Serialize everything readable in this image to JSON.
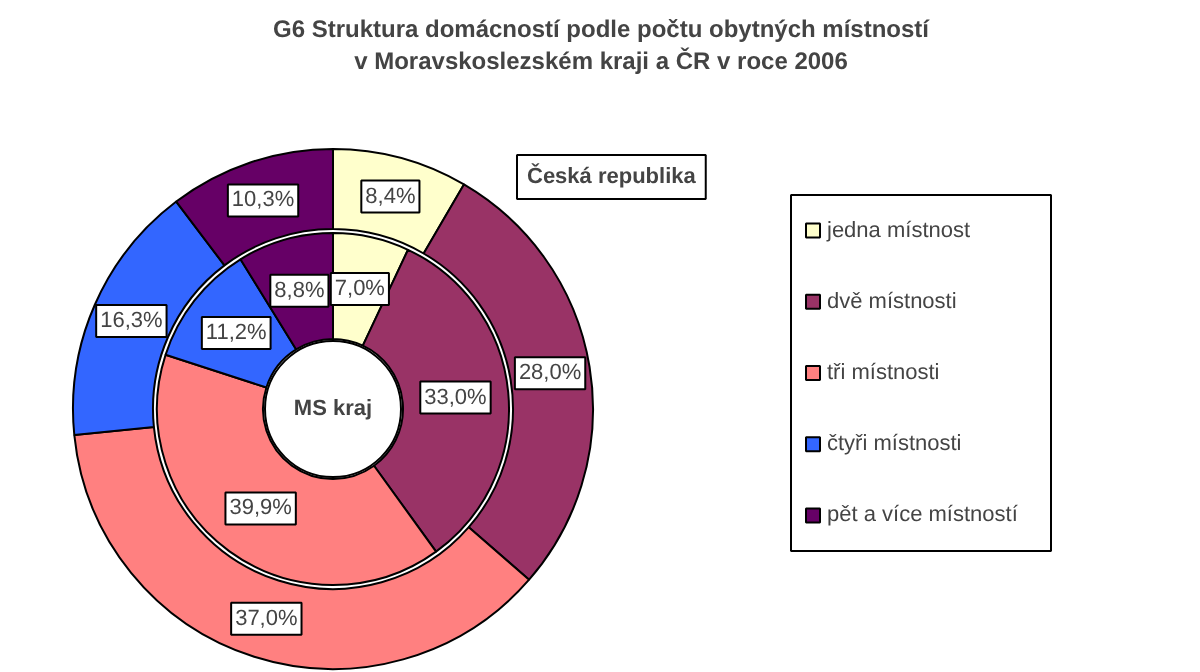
{
  "chart_data": {
    "type": "donut",
    "title": "G6 Struktura domácností podle počtu obytných místností\nv Moravskoslezském kraji a ČR v roce 2006",
    "categories": [
      "jedna místnost",
      "dvě místnosti",
      "tři místnosti",
      "čtyři místnosti",
      "pět a více místností"
    ],
    "colors": [
      "#ffffcc",
      "#993366",
      "#ff8080",
      "#3366ff",
      "#660066"
    ],
    "series": [
      {
        "name": "Česká republika",
        "values": [
          8.4,
          28.0,
          37.0,
          16.3,
          10.3
        ],
        "value_labels": [
          "8,4%",
          "28,0%",
          "37,0%",
          "16,3%",
          "10,3%"
        ]
      },
      {
        "name": "MS kraj",
        "values": [
          7.0,
          33.0,
          39.9,
          11.2,
          8.8
        ],
        "value_labels": [
          "7,0%",
          "33,0%",
          "39,9%",
          "11,2%",
          "8,8%"
        ]
      }
    ],
    "legend": "right"
  }
}
